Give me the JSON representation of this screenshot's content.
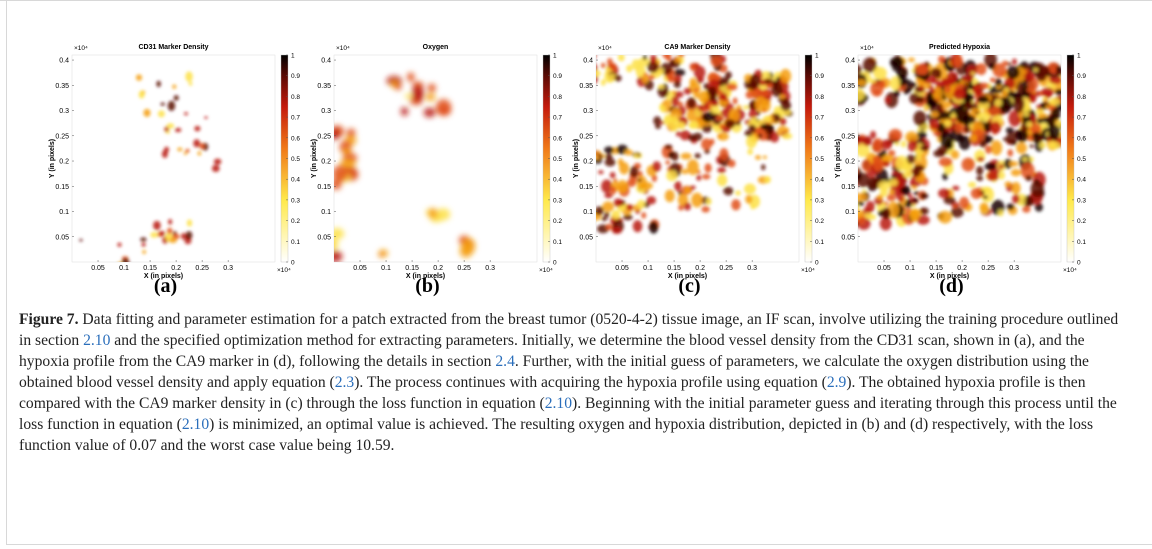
{
  "figure": {
    "panels": [
      {
        "title": "CD31 Marker Density",
        "label": "(a)"
      },
      {
        "title": "Oxygen",
        "label": "(b)"
      },
      {
        "title": "CA9 Marker Density",
        "label": "(c)"
      },
      {
        "title": "Predicted Hypoxia",
        "label": "(d)"
      }
    ],
    "xlabel": "X (in pixels)",
    "ylabel": "Y (in pixels)",
    "exponent": "×10⁴",
    "xlim": [
      0,
      0.39
    ],
    "ylim": [
      0,
      0.41
    ],
    "xticks": [
      0.05,
      0.1,
      0.15,
      0.2,
      0.25,
      0.3
    ],
    "yticks": [
      0.05,
      0.1,
      0.15,
      0.2,
      0.25,
      0.3,
      0.35,
      0.4
    ],
    "colorbar_lim": [
      0,
      1
    ],
    "colorbar_ticks": [
      0,
      0.1,
      0.2,
      0.3,
      0.4,
      0.5,
      0.6,
      0.7,
      0.8,
      0.9,
      1
    ]
  },
  "caption": {
    "label": "Figure 7.",
    "parts": [
      " Data fitting and parameter estimation for a patch extracted from the breast tumor (0520-4-2) tissue image, an IF scan, involve utilizing the training procedure outlined in section ",
      "2.10",
      " and the specified optimization method for extracting parameters. Initially, we determine the blood vessel density from the CD31 scan, shown in (a), and the hypoxia profile from the CA9 marker in (d), following the details in section ",
      "2.4",
      ". Further, with the initial guess of parameters, we calculate the oxygen distribution using the obtained blood vessel density and apply equation (",
      "2.3",
      "). The process continues with acquiring the hypoxia profile using equation (",
      "2.9",
      "). The obtained hypoxia profile is then compared with the CA9 marker density in (c) through the loss function in equation (",
      "2.10",
      "). Beginning with the initial parameter guess and iterating through this process until the loss function in equation (",
      "2.10",
      ") is minimized, an optimal value is achieved. The resulting oxygen and hypoxia distribution, depicted in (b) and (d) respectively, with the loss function value of 0.07 and the worst case value being 10.59."
    ]
  }
}
